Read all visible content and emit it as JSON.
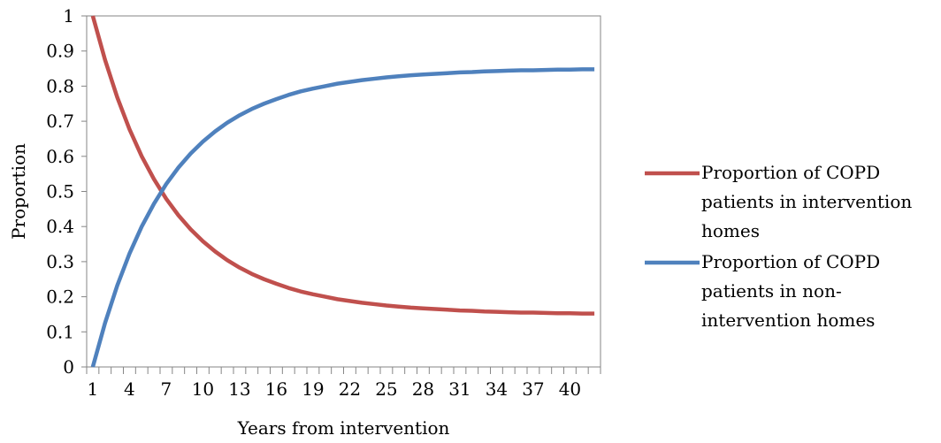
{
  "chart_data": {
    "type": "line",
    "title": "",
    "xlabel": "Years from intervention",
    "ylabel": "Proportion",
    "x": [
      1,
      2,
      3,
      4,
      5,
      6,
      7,
      8,
      9,
      10,
      11,
      12,
      13,
      14,
      15,
      16,
      17,
      18,
      19,
      20,
      21,
      22,
      23,
      24,
      25,
      26,
      27,
      28,
      29,
      30,
      31,
      32,
      33,
      34,
      35,
      36,
      37,
      38,
      39,
      40,
      41,
      42
    ],
    "x_tick_labels": [
      "1",
      "4",
      "7",
      "10",
      "13",
      "16",
      "19",
      "22",
      "25",
      "28",
      "31",
      "34",
      "37",
      "40"
    ],
    "y_tick_labels": [
      "0",
      "0.1",
      "0.2",
      "0.3",
      "0.4",
      "0.5",
      "0.6",
      "0.7",
      "0.8",
      "0.9",
      "1"
    ],
    "ylim": [
      0,
      1
    ],
    "grid": false,
    "legend_position": "right",
    "series": [
      {
        "name": "Proportion of COPD patients in intervention homes",
        "color": "#c0504d",
        "values": [
          1.0,
          0.875,
          0.768,
          0.677,
          0.6,
          0.535,
          0.479,
          0.432,
          0.392,
          0.358,
          0.329,
          0.304,
          0.283,
          0.265,
          0.25,
          0.237,
          0.225,
          0.215,
          0.207,
          0.2,
          0.193,
          0.188,
          0.183,
          0.179,
          0.175,
          0.172,
          0.169,
          0.167,
          0.165,
          0.163,
          0.161,
          0.16,
          0.158,
          0.157,
          0.156,
          0.155,
          0.155,
          0.154,
          0.153,
          0.153,
          0.152,
          0.152
        ]
      },
      {
        "name": "Proportion of COPD patients in non-intervention homes",
        "color": "#4f81bd",
        "values": [
          0.0,
          0.125,
          0.232,
          0.323,
          0.4,
          0.465,
          0.521,
          0.568,
          0.608,
          0.642,
          0.671,
          0.696,
          0.717,
          0.735,
          0.75,
          0.763,
          0.775,
          0.785,
          0.793,
          0.8,
          0.807,
          0.812,
          0.817,
          0.821,
          0.825,
          0.828,
          0.831,
          0.833,
          0.835,
          0.837,
          0.839,
          0.84,
          0.842,
          0.843,
          0.844,
          0.845,
          0.845,
          0.846,
          0.847,
          0.847,
          0.848,
          0.848
        ]
      }
    ],
    "legend_lines": [
      [
        "Proportion of COPD",
        "patients in intervention",
        "homes"
      ],
      [
        "Proportion of COPD",
        "patients in non-",
        "intervention homes"
      ]
    ]
  }
}
